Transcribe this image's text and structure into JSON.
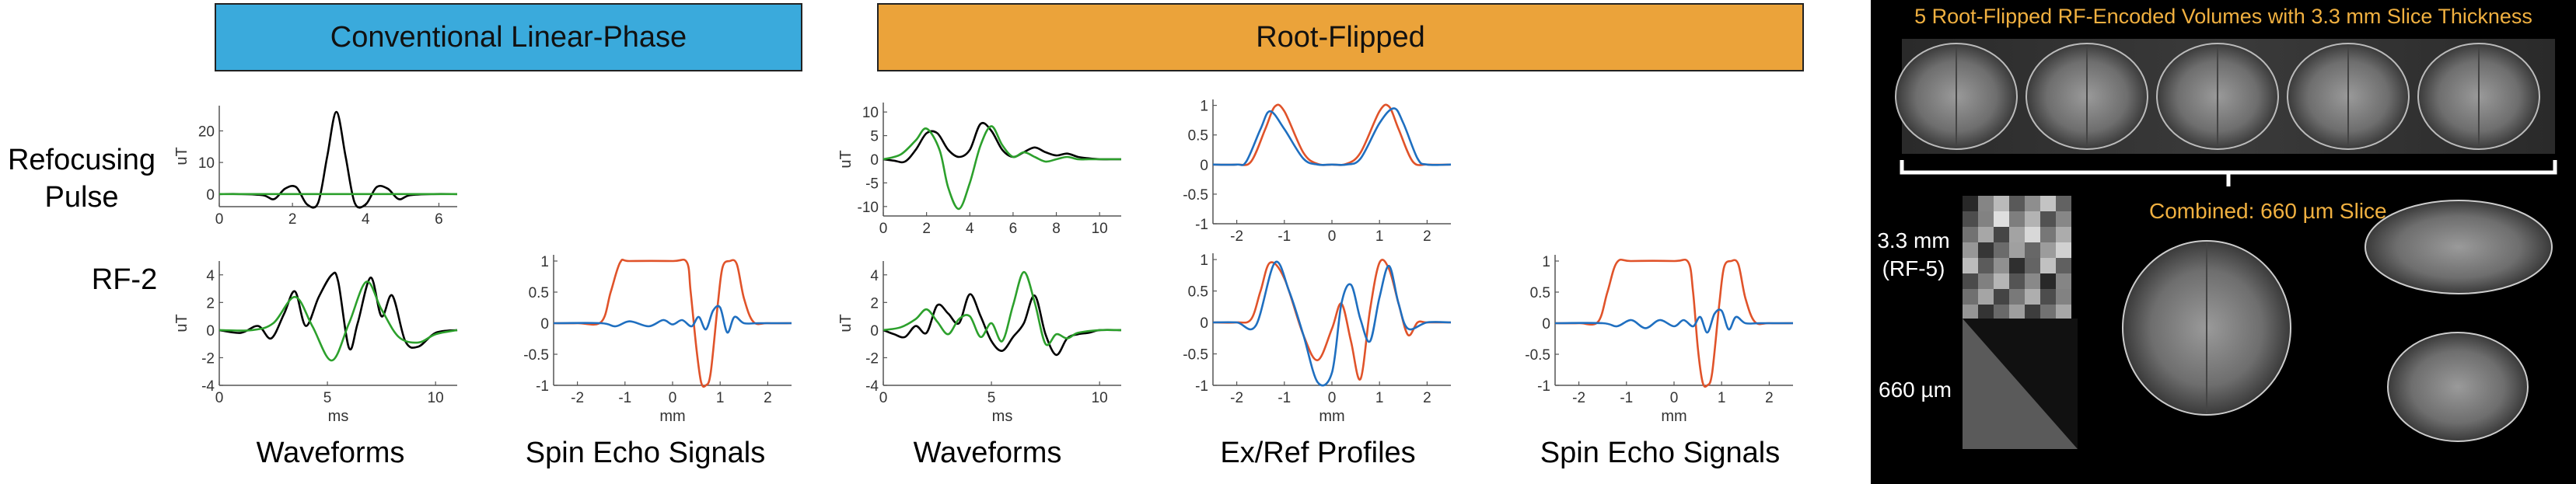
{
  "headers": {
    "conventional": "Conventional Linear-Phase",
    "root_flipped": "Root-Flipped"
  },
  "row_labels": {
    "refocusing": [
      "Refocusing",
      "Pulse"
    ],
    "rf2": "RF-2"
  },
  "captions": {
    "waveforms_left": "Waveforms",
    "spin_echo_left": "Spin Echo Signals",
    "waveforms_right": "Waveforms",
    "exref": "Ex/Ref Profiles",
    "spin_echo_right": "Spin Echo Signals"
  },
  "brain_panel": {
    "title": "5 Root-Flipped RF-Encoded Volumes with 3.3 mm Slice Thickness",
    "combined": "Combined: 660 µm Slice",
    "label_33": [
      "3.3 mm",
      "(RF-5)"
    ],
    "label_660": "660 µm"
  },
  "colors": {
    "black": "#000000",
    "green": "#2ca02c",
    "blue": "#1f6fc0",
    "orange": "#e0532a",
    "title_text": "#f0b040"
  },
  "chart_data": [
    {
      "id": "p1",
      "type": "line",
      "title": "",
      "xlabel": "",
      "ylabel": "uT",
      "xlim": [
        0,
        6.5
      ],
      "ylim": [
        -4,
        28
      ],
      "xticks": [
        0,
        2,
        4,
        6
      ],
      "yticks": [
        0,
        10,
        20
      ],
      "series": [
        {
          "color": "black",
          "x": [
            0,
            0.6,
            1.2,
            1.5,
            1.8,
            2.1,
            2.4,
            2.7,
            2.95,
            3.2,
            3.45,
            3.7,
            4.0,
            4.3,
            4.6,
            4.9,
            5.2,
            5.8,
            6.5
          ],
          "y": [
            0,
            0,
            -0.4,
            -1.6,
            1.7,
            2.2,
            -3.3,
            -2.8,
            12,
            26,
            12,
            -2.8,
            -3.3,
            2.2,
            1.7,
            -1.6,
            -0.4,
            0,
            0
          ]
        },
        {
          "color": "green",
          "x": [
            0,
            6.5
          ],
          "y": [
            0,
            0
          ]
        }
      ]
    },
    {
      "id": "p2",
      "type": "line",
      "title": "",
      "xlabel": "ms",
      "ylabel": "uT",
      "xlim": [
        0,
        11
      ],
      "ylim": [
        -4,
        5
      ],
      "xticks": [
        0,
        5,
        10
      ],
      "yticks": [
        -4,
        -2,
        0,
        2,
        4
      ],
      "series": [
        {
          "color": "black",
          "x": [
            0,
            1,
            1.8,
            2.4,
            3.0,
            3.5,
            4.0,
            4.6,
            5.2,
            5.5,
            6.0,
            6.4,
            7.0,
            7.5,
            8.0,
            8.6,
            9.2,
            10,
            11
          ],
          "y": [
            0,
            -0.2,
            0.3,
            -0.6,
            1.2,
            2.8,
            0.3,
            2.4,
            4.0,
            3.5,
            -1.3,
            0.5,
            3.8,
            1.0,
            2.5,
            -0.8,
            -1.2,
            -0.2,
            0
          ]
        },
        {
          "color": "green",
          "x": [
            0,
            1.5,
            2.5,
            3.5,
            4.3,
            5.2,
            6.0,
            6.8,
            7.5,
            8.3,
            9.2,
            10,
            11
          ],
          "y": [
            0,
            0,
            0.5,
            2.4,
            0.3,
            -2.2,
            0.5,
            3.5,
            1.5,
            -0.5,
            -0.9,
            -0.3,
            0
          ]
        }
      ]
    },
    {
      "id": "p3",
      "type": "line",
      "title": "",
      "xlabel": "mm",
      "ylabel": "",
      "xlim": [
        -2.5,
        2.5
      ],
      "ylim": [
        -1,
        1.1
      ],
      "xticks": [
        -2,
        -1,
        0,
        1,
        2
      ],
      "xtick_labels": [
        "-2",
        "-1",
        "0",
        "1",
        "2"
      ],
      "yticks": [
        -1,
        -0.5,
        0,
        0.5,
        1
      ],
      "series": [
        {
          "color": "orange",
          "x": [
            -2.5,
            -2.0,
            -1.5,
            -1.3,
            -1.1,
            -0.9,
            0,
            0.3,
            0.38,
            0.5,
            0.6,
            0.7,
            0.8,
            0.95,
            1.05,
            1.2,
            1.35,
            1.5,
            1.7,
            2.0,
            2.5
          ],
          "y": [
            0,
            0,
            0.02,
            0.5,
            0.98,
            1,
            1,
            0.98,
            0.5,
            -0.4,
            -0.95,
            -1,
            -0.8,
            0.3,
            0.9,
            1,
            0.95,
            0.4,
            0.02,
            0,
            0
          ]
        },
        {
          "color": "blue",
          "x": [
            -2.5,
            -1.5,
            -1.2,
            -0.9,
            -0.5,
            -0.2,
            0,
            0.2,
            0.4,
            0.55,
            0.7,
            0.85,
            1.0,
            1.15,
            1.3,
            1.5,
            1.8,
            2.5
          ],
          "y": [
            0,
            0,
            -0.05,
            0.03,
            -0.05,
            0.05,
            -0.02,
            0.05,
            -0.05,
            0.1,
            -0.1,
            0.2,
            0.25,
            -0.15,
            0.1,
            0.0,
            0,
            0
          ]
        }
      ]
    },
    {
      "id": "p4",
      "type": "line",
      "title": "",
      "xlabel": "",
      "ylabel": "uT",
      "xlim": [
        0,
        11
      ],
      "ylim": [
        -12,
        12
      ],
      "xticks": [
        0,
        2,
        4,
        6,
        8,
        10
      ],
      "yticks": [
        -10,
        -5,
        0,
        5,
        10
      ],
      "series": [
        {
          "color": "black",
          "x": [
            0,
            0.5,
            1.0,
            1.5,
            2.0,
            2.5,
            3.0,
            3.5,
            4.0,
            4.5,
            5.0,
            5.5,
            6.0,
            6.5,
            7.0,
            7.5,
            8.0,
            8.5,
            9.0,
            9.5,
            10,
            10.5,
            11
          ],
          "y": [
            0,
            -0.3,
            -0.5,
            2,
            5.5,
            5.5,
            2,
            0.5,
            2,
            7.5,
            6,
            2,
            0.5,
            1.5,
            2.5,
            1.5,
            0.8,
            1.2,
            0.5,
            0.2,
            0,
            0,
            0
          ]
        },
        {
          "color": "green",
          "x": [
            0,
            0.8,
            1.5,
            2.0,
            2.6,
            3.0,
            3.5,
            4.0,
            4.5,
            5.0,
            5.5,
            6.0,
            6.5,
            7.0,
            7.5,
            8.0,
            8.5,
            9.0,
            9.5,
            10,
            11
          ],
          "y": [
            0,
            1,
            4,
            6.5,
            2,
            -6,
            -10.5,
            -5,
            3,
            7,
            3,
            0.5,
            1.5,
            0.5,
            -0.5,
            0,
            0.5,
            0,
            0,
            0,
            0
          ]
        }
      ]
    },
    {
      "id": "p5",
      "type": "line",
      "title": "",
      "xlabel": "ms",
      "ylabel": "uT",
      "xlim": [
        0,
        11
      ],
      "ylim": [
        -4,
        5
      ],
      "xticks": [
        0,
        5,
        10
      ],
      "yticks": [
        -4,
        -2,
        0,
        2,
        4
      ],
      "series": [
        {
          "color": "black",
          "x": [
            0,
            0.5,
            1.0,
            1.5,
            2.0,
            2.5,
            3.0,
            3.5,
            4.0,
            4.5,
            5.0,
            5.5,
            6.0,
            6.5,
            7.0,
            7.5,
            8.0,
            8.5,
            9.0,
            9.5,
            10,
            11
          ],
          "y": [
            0,
            -0.3,
            -0.5,
            0.3,
            -0.2,
            1.8,
            1.2,
            0.5,
            2.6,
            1.0,
            -0.8,
            -1.5,
            -0.5,
            0.5,
            2.5,
            -0.3,
            -1.8,
            -0.6,
            -0.3,
            -0.2,
            0,
            0
          ]
        },
        {
          "color": "green",
          "x": [
            0,
            0.8,
            1.5,
            2.0,
            2.5,
            3.0,
            3.5,
            4.0,
            4.5,
            5.0,
            5.5,
            6.0,
            6.5,
            7.0,
            7.5,
            8.0,
            8.5,
            9.0,
            10,
            11
          ],
          "y": [
            0,
            0.2,
            0.8,
            1.5,
            0.6,
            -0.3,
            0.8,
            1.0,
            -0.5,
            0.5,
            -0.8,
            1.8,
            4.2,
            2.0,
            -1.0,
            -0.3,
            -0.6,
            -0.2,
            0,
            0
          ]
        }
      ]
    },
    {
      "id": "p6",
      "type": "line",
      "title": "",
      "xlabel": "",
      "ylabel": "",
      "xlim": [
        -2.5,
        2.5
      ],
      "ylim": [
        -1,
        1.1
      ],
      "xticks": [
        -2,
        -1,
        0,
        1,
        2
      ],
      "yticks": [
        -1,
        -0.5,
        0,
        0.5,
        1
      ],
      "series": [
        {
          "color": "orange",
          "x": [
            -2.5,
            -2.0,
            -1.7,
            -1.4,
            -1.2,
            -1.0,
            -0.6,
            -0.3,
            0,
            0.3,
            0.6,
            1.0,
            1.2,
            1.4,
            1.7,
            2.0,
            2.5
          ],
          "y": [
            0,
            0,
            0.05,
            0.6,
            0.98,
            0.9,
            0.2,
            0.01,
            0,
            0.01,
            0.2,
            0.9,
            0.98,
            0.6,
            0.05,
            0,
            0
          ]
        },
        {
          "color": "blue",
          "x": [
            -2.5,
            -2.0,
            -1.8,
            -1.5,
            -1.3,
            -1.0,
            -0.6,
            -0.3,
            0,
            0.3,
            0.6,
            1.0,
            1.3,
            1.5,
            1.8,
            2.0,
            2.5
          ],
          "y": [
            0,
            0,
            0.05,
            0.6,
            0.9,
            0.6,
            0.1,
            0.0,
            0.0,
            0.0,
            0.1,
            0.7,
            0.95,
            0.7,
            0.1,
            0,
            0
          ]
        }
      ]
    },
    {
      "id": "p7",
      "type": "line",
      "title": "",
      "xlabel": "mm",
      "ylabel": "",
      "xlim": [
        -2.5,
        2.5
      ],
      "ylim": [
        -1,
        1.1
      ],
      "xticks": [
        -2,
        -1,
        0,
        1,
        2
      ],
      "yticks": [
        -1,
        -0.5,
        0,
        0.5,
        1
      ],
      "series": [
        {
          "color": "orange",
          "x": [
            -2.5,
            -2.0,
            -1.7,
            -1.5,
            -1.3,
            -1.0,
            -0.6,
            -0.3,
            0,
            0.2,
            0.4,
            0.6,
            0.8,
            1.0,
            1.2,
            1.4,
            1.6,
            1.8,
            2.0,
            2.5
          ],
          "y": [
            0,
            0,
            0.05,
            0.5,
            0.95,
            0.7,
            -0.2,
            -0.6,
            -0.1,
            0.3,
            -0.3,
            -0.9,
            0.2,
            0.95,
            0.85,
            0.3,
            -0.2,
            0.0,
            0,
            0
          ]
        },
        {
          "color": "blue",
          "x": [
            -2.5,
            -2.0,
            -1.6,
            -1.2,
            -0.9,
            -0.6,
            -0.3,
            0,
            0.2,
            0.4,
            0.6,
            0.8,
            1.0,
            1.2,
            1.4,
            1.6,
            2.0,
            2.5
          ],
          "y": [
            0,
            0,
            -0.05,
            0.95,
            0.5,
            -0.2,
            -0.95,
            -0.8,
            0.3,
            0.6,
            0.05,
            -0.3,
            0.4,
            0.9,
            0.3,
            -0.1,
            0,
            0
          ]
        }
      ]
    },
    {
      "id": "p8",
      "type": "line",
      "title": "",
      "xlabel": "mm",
      "ylabel": "",
      "xlim": [
        -2.5,
        2.5
      ],
      "ylim": [
        -1,
        1.1
      ],
      "xticks": [
        -2,
        -1,
        0,
        1,
        2
      ],
      "xtick_labels": [
        "-2",
        "-1",
        "0",
        "1",
        "2"
      ],
      "yticks": [
        -1,
        -0.5,
        0,
        0.5,
        1
      ],
      "series": [
        {
          "color": "orange",
          "x": [
            -2.5,
            -2.0,
            -1.6,
            -1.4,
            -1.2,
            -0.9,
            0,
            0.3,
            0.4,
            0.5,
            0.6,
            0.7,
            0.8,
            0.95,
            1.05,
            1.2,
            1.35,
            1.5,
            1.7,
            2.0,
            2.5
          ],
          "y": [
            0,
            0,
            0.02,
            0.5,
            0.98,
            1,
            1,
            0.98,
            0.5,
            -0.4,
            -0.95,
            -1,
            -0.8,
            0.3,
            0.9,
            1,
            0.95,
            0.4,
            0.02,
            0,
            0
          ]
        },
        {
          "color": "blue",
          "x": [
            -2.5,
            -1.5,
            -1.2,
            -0.9,
            -0.6,
            -0.3,
            0,
            0.2,
            0.4,
            0.55,
            0.7,
            0.85,
            1.0,
            1.15,
            1.3,
            1.5,
            1.8,
            2.5
          ],
          "y": [
            0,
            0,
            -0.05,
            0.05,
            -0.08,
            0.05,
            -0.05,
            0.05,
            -0.05,
            0.1,
            -0.15,
            0.15,
            0.2,
            -0.1,
            0.1,
            0.0,
            0,
            0
          ]
        }
      ]
    }
  ]
}
